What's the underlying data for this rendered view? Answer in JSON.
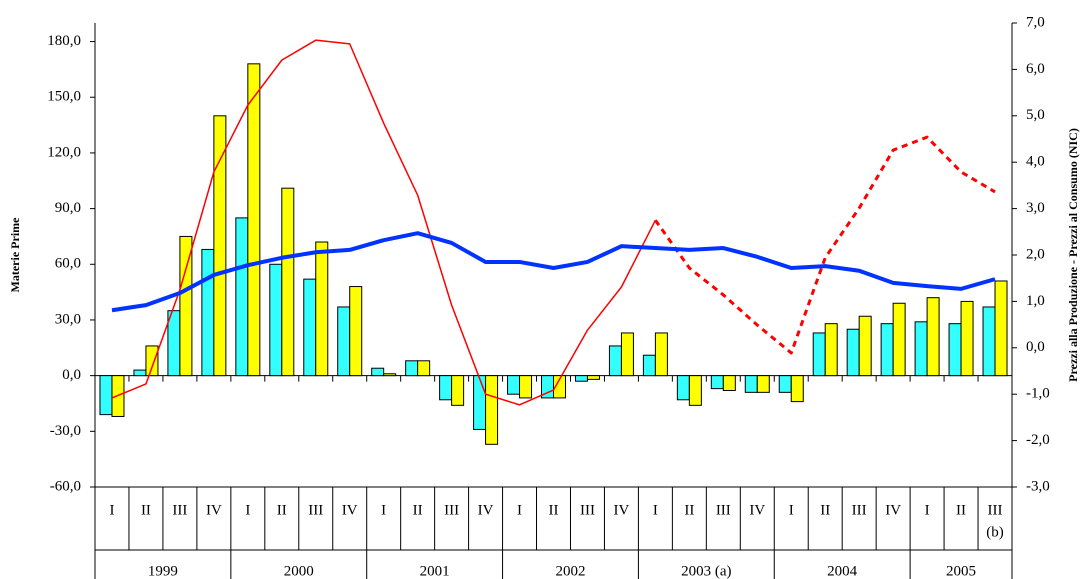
{
  "chart_data": {
    "type": "bar",
    "y_label": "Materie Prime",
    "y2_label": "Prezzi alla Produzione - Prezzi al Consumo (NIC)",
    "groups": [
      {
        "name": "1999",
        "categories": [
          "I",
          "II",
          "III",
          "IV"
        ]
      },
      {
        "name": "2000",
        "categories": [
          "I",
          "II",
          "III",
          "IV"
        ]
      },
      {
        "name": "2001",
        "categories": [
          "I",
          "II",
          "III",
          "IV"
        ]
      },
      {
        "name": "2002",
        "categories": [
          "I",
          "II",
          "III",
          "IV"
        ]
      },
      {
        "name": "2003 (a)",
        "categories": [
          "I",
          "II",
          "III",
          "IV"
        ]
      },
      {
        "name": "2004",
        "categories": [
          "I",
          "II",
          "III",
          "IV"
        ]
      },
      {
        "name": "2005",
        "categories": [
          "I",
          "II",
          "III"
        ]
      }
    ],
    "annotation": "(b)",
    "ylim": [
      -60,
      190
    ],
    "yticks": [
      {
        "value": -60,
        "label": "-60,0"
      },
      {
        "value": -30,
        "label": "-30,0"
      },
      {
        "value": 0,
        "label": "0,0"
      },
      {
        "value": 30,
        "label": "30,0"
      },
      {
        "value": 60,
        "label": "60,0"
      },
      {
        "value": 90,
        "label": "90,0"
      },
      {
        "value": 120,
        "label": "120,0"
      },
      {
        "value": 150,
        "label": "150,0"
      },
      {
        "value": 180,
        "label": "180,0"
      }
    ],
    "y2lim": [
      -3,
      7
    ],
    "y2ticks": [
      {
        "value": -3,
        "label": "-3,0"
      },
      {
        "value": -2,
        "label": "-2,0"
      },
      {
        "value": -1,
        "label": "-1,0"
      },
      {
        "value": 0,
        "label": "0,0"
      },
      {
        "value": 1,
        "label": "1,0"
      },
      {
        "value": 2,
        "label": "2,0"
      },
      {
        "value": 3,
        "label": "3,0"
      },
      {
        "value": 4,
        "label": "4,0"
      },
      {
        "value": 5,
        "label": "5,0"
      },
      {
        "value": 6,
        "label": "6,0"
      },
      {
        "value": 7,
        "label": "7,0"
      }
    ],
    "series": [
      {
        "type": "bar",
        "color": "#33ffff",
        "values": [
          -21,
          3,
          35,
          68,
          85,
          60,
          52,
          37,
          4,
          8,
          -13,
          -29,
          -10,
          -12,
          -3,
          16,
          11,
          -13,
          -7,
          -9,
          -9,
          23,
          25,
          28,
          29,
          28,
          37
        ]
      },
      {
        "type": "bar",
        "color": "#ffff00",
        "values": [
          -22,
          16,
          75,
          140,
          168,
          101,
          72,
          48,
          1,
          8,
          -16,
          -37,
          -12,
          -12,
          -2,
          23,
          23,
          -16,
          -8,
          -9,
          -14,
          28,
          32,
          39,
          42,
          40,
          51
        ]
      },
      {
        "type": "line",
        "axis": "y2",
        "color": "#ff0000",
        "width": 1.5,
        "values": [
          -1.08,
          -0.78,
          1.25,
          3.79,
          5.23,
          6.2,
          6.63,
          6.55,
          4.84,
          3.29,
          0.92,
          -1.0,
          -1.23,
          -0.91,
          0.38,
          1.31,
          2.75,
          null,
          null,
          null,
          null,
          null,
          null,
          null,
          null,
          null,
          null
        ]
      },
      {
        "type": "line",
        "axis": "y2",
        "color": "#ff0000",
        "width": 3,
        "dashed": true,
        "values": [
          null,
          null,
          null,
          null,
          null,
          null,
          null,
          null,
          null,
          null,
          null,
          null,
          null,
          null,
          null,
          null,
          2.75,
          1.72,
          1.14,
          0.49,
          -0.11,
          1.94,
          3.01,
          4.26,
          4.54,
          3.79,
          3.36
        ]
      },
      {
        "type": "line",
        "axis": "y2",
        "color": "#0033ff",
        "width": 4,
        "values": [
          0.81,
          0.92,
          1.18,
          1.57,
          1.78,
          1.94,
          2.06,
          2.11,
          2.32,
          2.47,
          2.26,
          1.85,
          1.85,
          1.72,
          1.85,
          2.19,
          2.15,
          2.11,
          2.15,
          1.96,
          1.72,
          1.76,
          1.66,
          1.4,
          1.33,
          1.27,
          1.48
        ]
      }
    ]
  }
}
